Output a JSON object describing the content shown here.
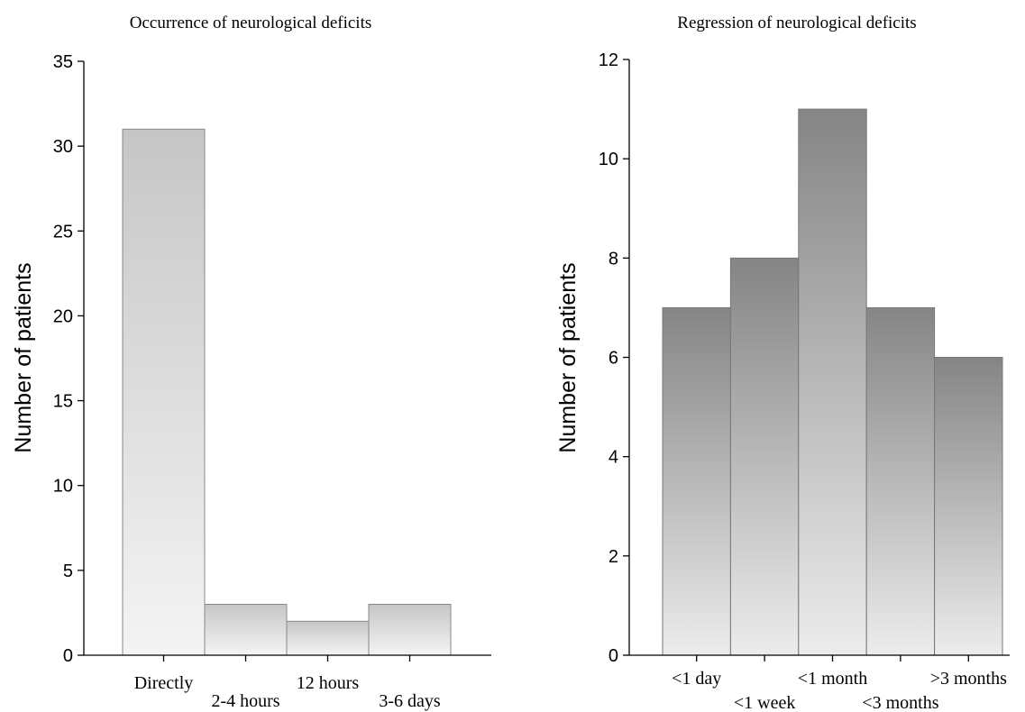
{
  "chart_data": [
    {
      "type": "bar",
      "title": "Occurrence of neurological deficits",
      "xlabel": "",
      "ylabel": "Number of patients",
      "categories": [
        "Directly",
        "2-4 hours",
        "12 hours",
        "3-6 days"
      ],
      "values": [
        31,
        3,
        2,
        3
      ],
      "ylim": [
        0,
        35
      ],
      "yticks": [
        0,
        5,
        10,
        15,
        20,
        25,
        30,
        35
      ],
      "label_rows": [
        0,
        1,
        0,
        1
      ],
      "grid": false,
      "colors": {
        "top": "#c6c6c6",
        "bottom": "#f4f4f4",
        "edge": "#888888"
      }
    },
    {
      "type": "bar",
      "title": "Regression of neurological deficits",
      "xlabel": "",
      "ylabel": "Number of patients",
      "categories": [
        "<1 day",
        "<1 week",
        "<1 month",
        "<3 months",
        ">3 months"
      ],
      "values": [
        7,
        8,
        11,
        7,
        6
      ],
      "ylim": [
        0,
        12
      ],
      "yticks": [
        0,
        2,
        4,
        6,
        8,
        10,
        12
      ],
      "label_rows": [
        0,
        1,
        0,
        1,
        0
      ],
      "grid": false,
      "colors": {
        "top": "#858585",
        "bottom": "#ececec",
        "edge": "#777777"
      }
    }
  ]
}
